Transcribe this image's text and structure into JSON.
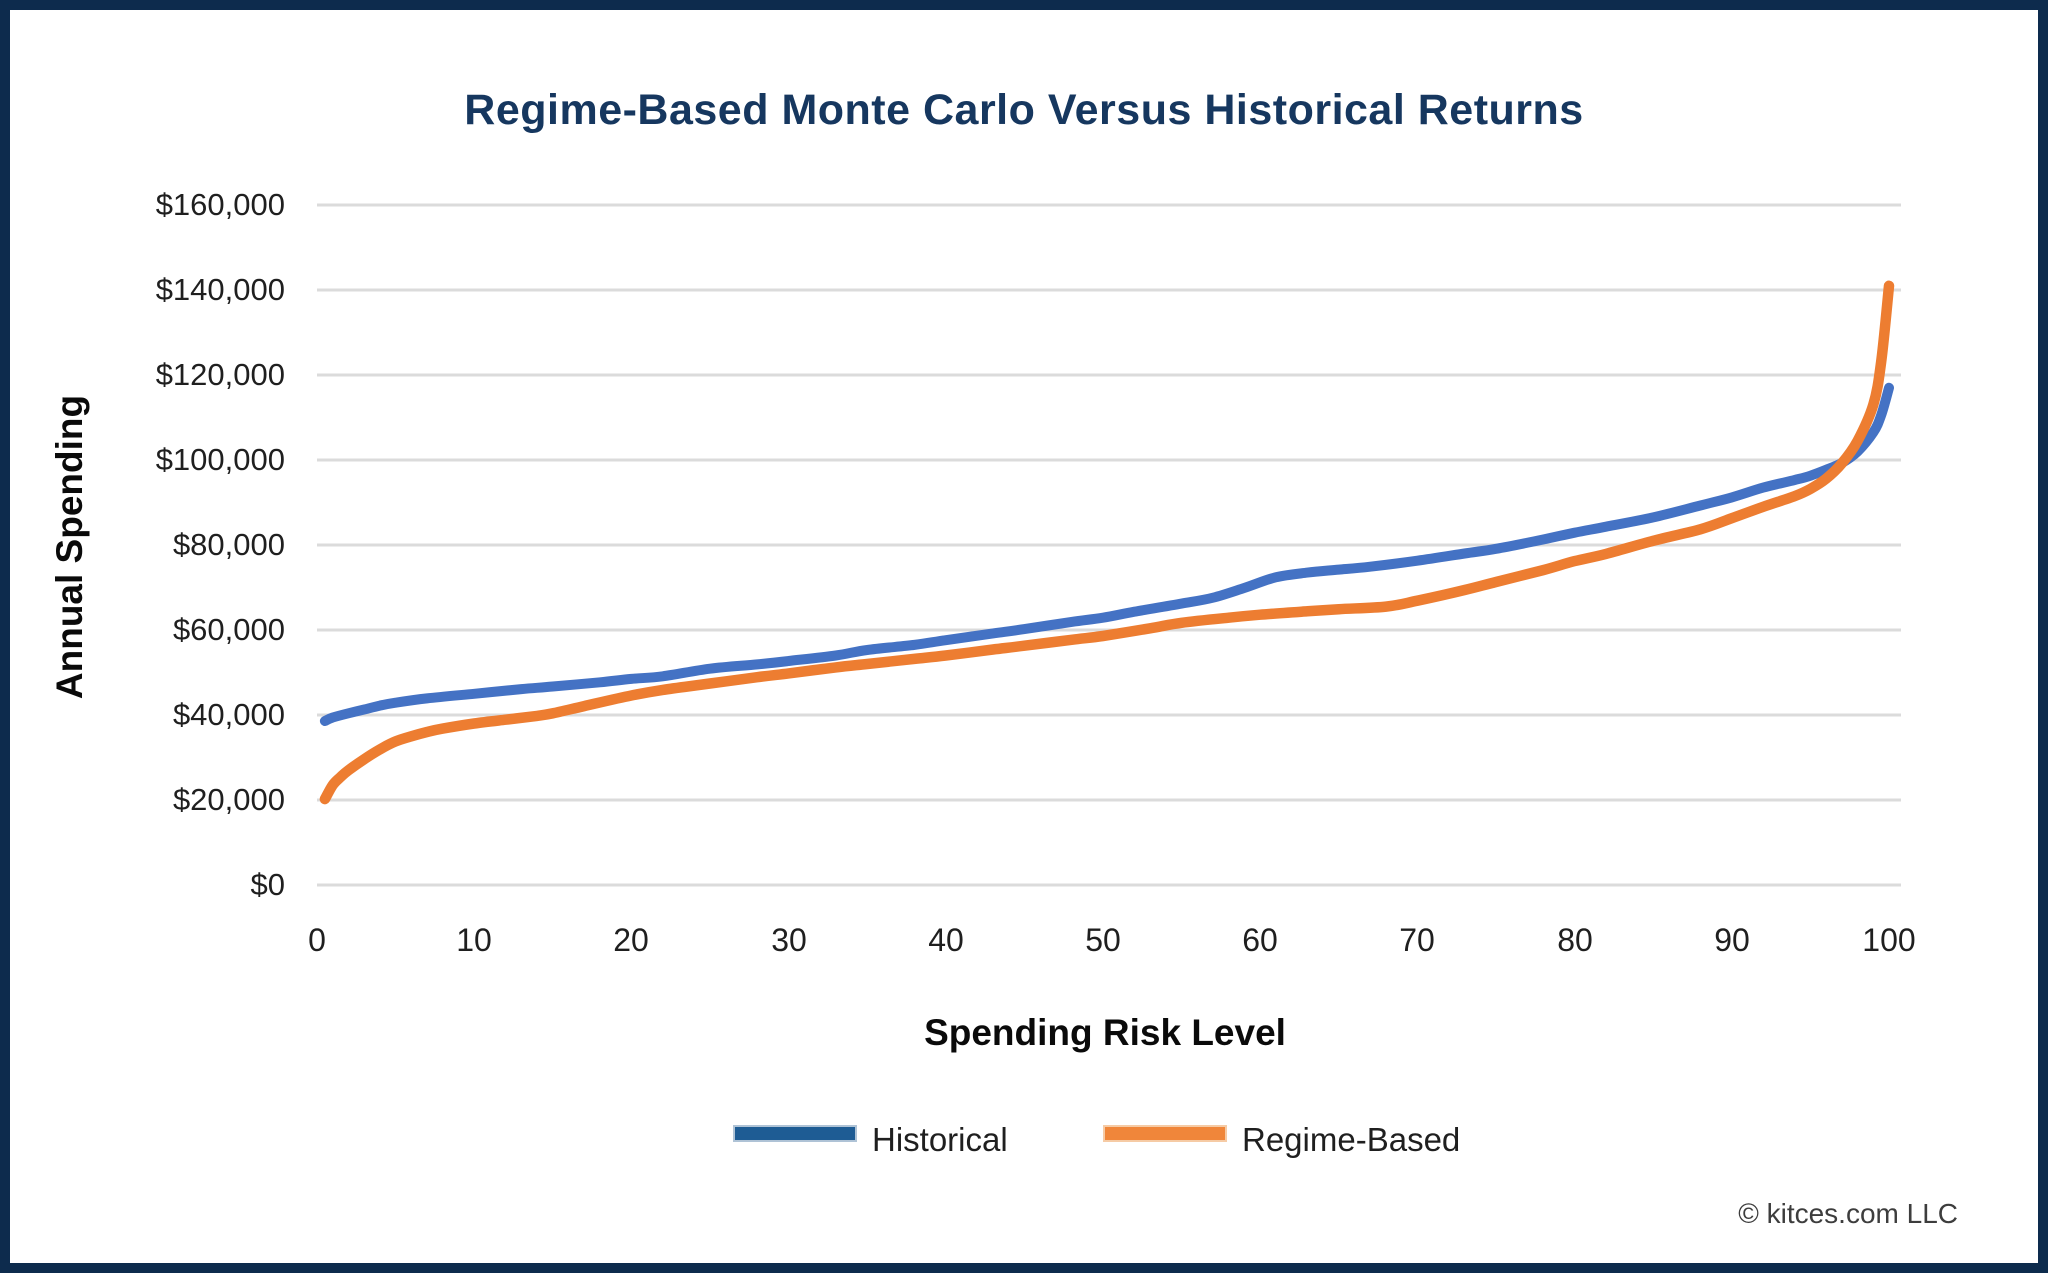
{
  "page": {
    "title": "Regime-Based Monte Carlo Versus Historical Returns",
    "footer": "© kitces.com LLC"
  },
  "colors": {
    "frame": "#0D2B4D",
    "title_text": "#16375F",
    "gridline": "#DBDBDB",
    "tick_text": "#1F1F1F",
    "axis_title_text": "#0A0A0A",
    "footer_text": "#3D3D3D",
    "historical_line": "#4472C4",
    "regime_line": "#ED7D31",
    "historical_legend_swatch": "#1E5C94",
    "regime_legend_swatch": "#F0863A"
  },
  "chart_data": {
    "type": "line",
    "title": "Regime-Based Monte Carlo Versus Historical Returns",
    "xlabel": "Spending Risk Level",
    "ylabel": "Annual Spending",
    "xlim": [
      0,
      100
    ],
    "ylim": [
      0,
      160000
    ],
    "x_ticks": [
      0,
      10,
      20,
      30,
      40,
      50,
      60,
      70,
      80,
      90,
      100
    ],
    "y_ticks": [
      {
        "value": 0,
        "label": "$0"
      },
      {
        "value": 20000,
        "label": "$20,000"
      },
      {
        "value": 40000,
        "label": "$40,000"
      },
      {
        "value": 60000,
        "label": "$60,000"
      },
      {
        "value": 80000,
        "label": "$80,000"
      },
      {
        "value": 100000,
        "label": "$100,000"
      },
      {
        "value": 120000,
        "label": "$120,000"
      },
      {
        "value": 140000,
        "label": "$140,000"
      },
      {
        "value": 160000,
        "label": "$160,000"
      }
    ],
    "grid": "horizontal",
    "legend_position": "bottom",
    "series": [
      {
        "name": "Historical",
        "line_color": "#4472C4",
        "legend_color": "#1E5C94",
        "points": [
          [
            0.5,
            38600
          ],
          [
            1,
            39400
          ],
          [
            2,
            40400
          ],
          [
            3,
            41300
          ],
          [
            4,
            42200
          ],
          [
            5,
            42900
          ],
          [
            7,
            43900
          ],
          [
            10,
            45000
          ],
          [
            13,
            46100
          ],
          [
            15,
            46700
          ],
          [
            18,
            47700
          ],
          [
            20,
            48500
          ],
          [
            22,
            49100
          ],
          [
            25,
            50900
          ],
          [
            28,
            51900
          ],
          [
            30,
            52700
          ],
          [
            33,
            54000
          ],
          [
            35,
            55300
          ],
          [
            38,
            56500
          ],
          [
            40,
            57600
          ],
          [
            43,
            59200
          ],
          [
            45,
            60200
          ],
          [
            48,
            61900
          ],
          [
            50,
            62900
          ],
          [
            52,
            64300
          ],
          [
            55,
            66200
          ],
          [
            57,
            67600
          ],
          [
            59,
            69900
          ],
          [
            61,
            72400
          ],
          [
            63,
            73500
          ],
          [
            65,
            74200
          ],
          [
            67,
            74900
          ],
          [
            70,
            76300
          ],
          [
            73,
            78000
          ],
          [
            75,
            79100
          ],
          [
            78,
            81300
          ],
          [
            80,
            82900
          ],
          [
            82,
            84300
          ],
          [
            85,
            86500
          ],
          [
            88,
            89300
          ],
          [
            90,
            91200
          ],
          [
            92,
            93500
          ],
          [
            94,
            95300
          ],
          [
            95,
            96300
          ],
          [
            96,
            97700
          ],
          [
            97,
            99300
          ],
          [
            98,
            102000
          ],
          [
            99,
            106500
          ],
          [
            99.5,
            110500
          ],
          [
            100,
            117000
          ]
        ]
      },
      {
        "name": "Regime-Based",
        "line_color": "#ED7D31",
        "legend_color": "#F0863A",
        "points": [
          [
            0.5,
            20200
          ],
          [
            1,
            23500
          ],
          [
            1.5,
            25400
          ],
          [
            2,
            27000
          ],
          [
            3,
            29600
          ],
          [
            4,
            31900
          ],
          [
            5,
            33800
          ],
          [
            6,
            35000
          ],
          [
            7,
            36000
          ],
          [
            8,
            36800
          ],
          [
            10,
            38000
          ],
          [
            12,
            38900
          ],
          [
            14,
            39800
          ],
          [
            15,
            40400
          ],
          [
            17,
            42100
          ],
          [
            20,
            44600
          ],
          [
            22,
            45900
          ],
          [
            25,
            47400
          ],
          [
            28,
            48900
          ],
          [
            30,
            49800
          ],
          [
            33,
            51200
          ],
          [
            35,
            52000
          ],
          [
            38,
            53200
          ],
          [
            40,
            54000
          ],
          [
            43,
            55400
          ],
          [
            45,
            56300
          ],
          [
            48,
            57700
          ],
          [
            50,
            58600
          ],
          [
            53,
            60400
          ],
          [
            55,
            61700
          ],
          [
            58,
            62900
          ],
          [
            60,
            63600
          ],
          [
            63,
            64400
          ],
          [
            65,
            64900
          ],
          [
            68,
            65500
          ],
          [
            70,
            66900
          ],
          [
            73,
            69400
          ],
          [
            75,
            71300
          ],
          [
            78,
            74100
          ],
          [
            80,
            76200
          ],
          [
            82,
            77900
          ],
          [
            85,
            81000
          ],
          [
            88,
            83700
          ],
          [
            90,
            86300
          ],
          [
            92,
            89000
          ],
          [
            94,
            91500
          ],
          [
            95,
            93200
          ],
          [
            96,
            95600
          ],
          [
            97,
            99200
          ],
          [
            98,
            104500
          ],
          [
            99,
            113000
          ],
          [
            99.5,
            123000
          ],
          [
            100,
            141000
          ]
        ]
      }
    ]
  }
}
